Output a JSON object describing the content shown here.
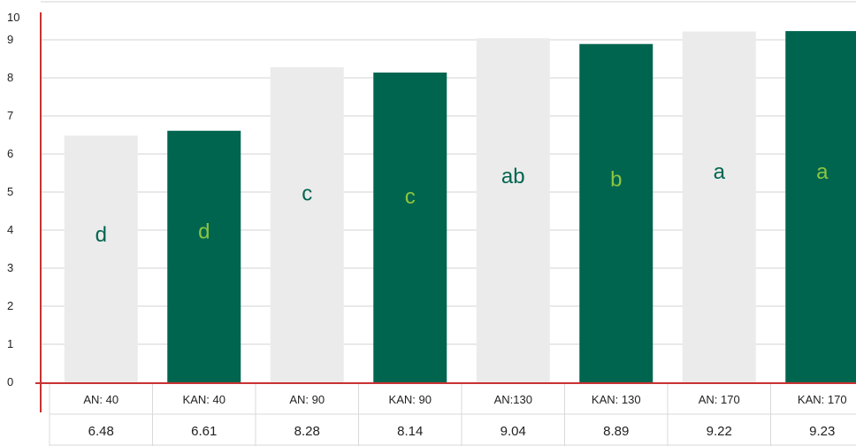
{
  "chart_data": {
    "type": "bar",
    "categories": [
      "AN: 40",
      "KAN: 40",
      "AN: 90",
      "KAN: 90",
      "AN:130",
      "KAN: 130",
      "AN: 170",
      "KAN: 170"
    ],
    "values": [
      6.48,
      6.61,
      8.28,
      8.14,
      9.04,
      8.89,
      9.22,
      9.23
    ],
    "data_labels": [
      "6.48",
      "6.61",
      "8.28",
      "8.14",
      "9.04",
      "8.89",
      "9.22",
      "9.23"
    ],
    "significance_letters": [
      "d",
      "d",
      "c",
      "c",
      "ab",
      "b",
      "a",
      "a"
    ],
    "y_ticks": [
      "0",
      "1",
      "2",
      "3",
      "4",
      "5",
      "6",
      "7",
      "8",
      "9",
      "10"
    ],
    "ylim": [
      0,
      10
    ],
    "grid": true,
    "title": "",
    "xlabel": "",
    "ylabel": "",
    "colors": {
      "an_bar": "#ebebeb",
      "kan_bar": "#00654f",
      "letter_on_light": "#00654f",
      "letter_on_dark": "#8cc63f",
      "axis": "#c83232",
      "grid": "#e2e2e2",
      "table_lines": "#d9d9d9"
    }
  }
}
